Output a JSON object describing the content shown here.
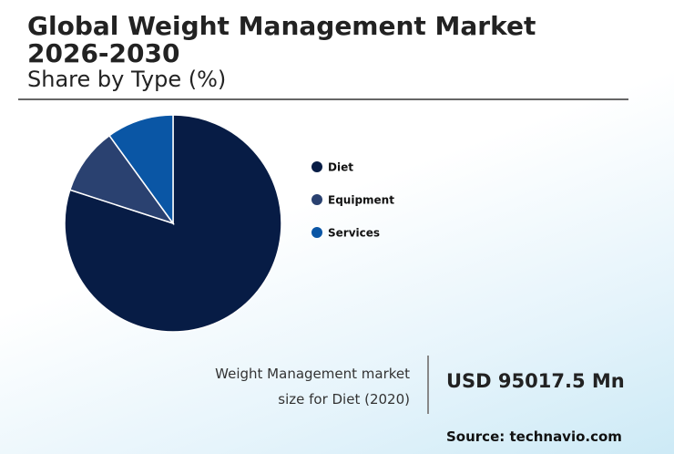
{
  "chart_data": {
    "type": "pie",
    "title": "Global Weight Management Market 2026-2030",
    "subtitle": "Share by Type (%)",
    "categories": [
      "Diet",
      "Equipment",
      "Services"
    ],
    "values": [
      80,
      10,
      10
    ],
    "colors": [
      "#071c45",
      "#2a4170",
      "#0a56a5"
    ],
    "annotation": "Weight Management market size for Diet (2020)",
    "annotation_value": "USD 95017.5 Mn",
    "source": "Source: technavio.com"
  }
}
